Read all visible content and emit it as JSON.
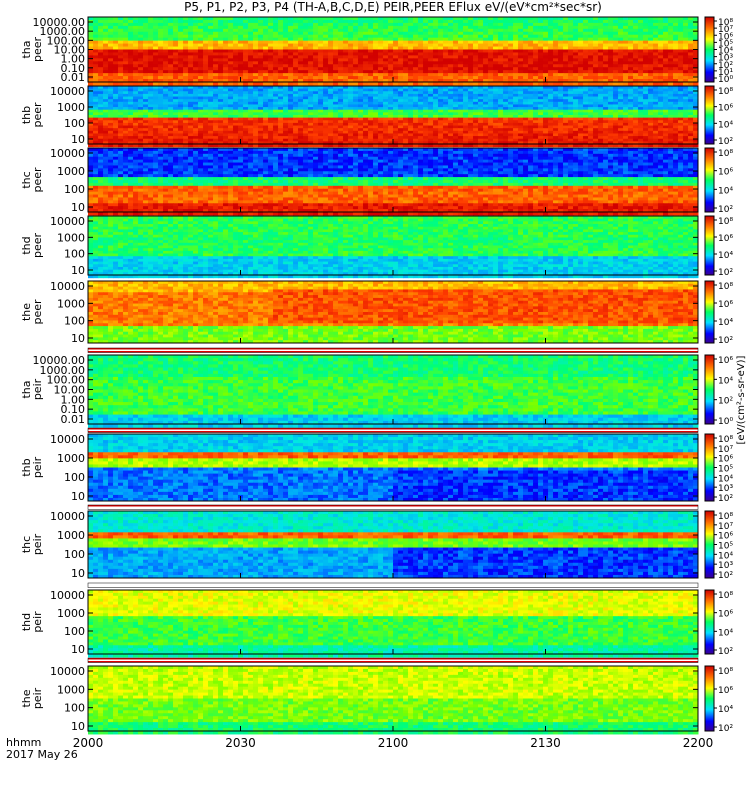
{
  "title": "P5, P1, P2, P3, P4 (TH-A,B,C,D,E) PEIR,PEER EFlux eV/(eV*cm²*sec*sr)",
  "time_axis": {
    "label_line1": "hhmm",
    "label_line2": "2017 May 26",
    "range": [
      "2000",
      "2200"
    ],
    "ticks": [
      "2000",
      "2030",
      "2100",
      "2130",
      "2200"
    ]
  },
  "colorbar_unit_label": "[eV/(cm²-s-sr-eV)]",
  "chart_data": [
    {
      "type": "heatmap",
      "probe": "tha",
      "species": "peer",
      "ylabel": [
        "tha",
        "peer"
      ],
      "yticks": [
        "10000.00",
        "1000.00",
        "100.00",
        "10.00",
        "1.00",
        "0.10",
        "0.01"
      ],
      "log_y": true,
      "colorbar_ticks": [
        "10⁸",
        "10⁷",
        "10⁶",
        "10⁵",
        "10⁴",
        "10³",
        "10²",
        "10¹",
        "10⁰"
      ]
    },
    {
      "type": "heatmap",
      "probe": "thb",
      "species": "peer",
      "ylabel": [
        "thb",
        "peer"
      ],
      "yticks": [
        "10000",
        "1000",
        "100",
        "10"
      ],
      "log_y": true,
      "colorbar_ticks": [
        "10⁸",
        "10⁶",
        "10⁴",
        "10²"
      ]
    },
    {
      "type": "heatmap",
      "probe": "thc",
      "species": "peer",
      "ylabel": [
        "thc",
        "peer"
      ],
      "yticks": [
        "10000",
        "1000",
        "100",
        "10"
      ],
      "log_y": true,
      "colorbar_ticks": [
        "10⁸",
        "10⁶",
        "10⁴",
        "10²"
      ]
    },
    {
      "type": "heatmap",
      "probe": "thd",
      "species": "peer",
      "ylabel": [
        "thd",
        "peer"
      ],
      "yticks": [
        "10000",
        "1000",
        "100",
        "10"
      ],
      "log_y": true,
      "colorbar_ticks": [
        "10⁸",
        "10⁶",
        "10⁴",
        "10²"
      ]
    },
    {
      "type": "heatmap",
      "probe": "the",
      "species": "peer",
      "ylabel": [
        "the",
        "peer"
      ],
      "yticks": [
        "10000",
        "1000",
        "100",
        "10"
      ],
      "log_y": true,
      "colorbar_ticks": [
        "10⁸",
        "10⁶",
        "10⁴",
        "10²"
      ]
    },
    {
      "type": "heatmap",
      "probe": "tha",
      "species": "peir",
      "ylabel": [
        "tha",
        "peir"
      ],
      "yticks": [
        "10000.00",
        "1000.00",
        "100.00",
        "10.00",
        "1.00",
        "0.10",
        "0.01"
      ],
      "log_y": true,
      "colorbar_ticks": [
        "10⁶",
        "10⁴",
        "10²",
        "10⁰"
      ]
    },
    {
      "type": "heatmap",
      "probe": "thb",
      "species": "peir",
      "ylabel": [
        "thb",
        "peir"
      ],
      "yticks": [
        "10000",
        "1000",
        "100",
        "10"
      ],
      "log_y": true,
      "colorbar_ticks": [
        "10⁸",
        "10⁷",
        "10⁶",
        "10⁵",
        "10⁴",
        "10³",
        "10²"
      ]
    },
    {
      "type": "heatmap",
      "probe": "thc",
      "species": "peir",
      "ylabel": [
        "thc",
        "peir"
      ],
      "yticks": [
        "10000",
        "1000",
        "100",
        "10"
      ],
      "log_y": true,
      "colorbar_ticks": [
        "10⁸",
        "10⁷",
        "10⁶",
        "10⁵",
        "10⁴",
        "10³",
        "10²"
      ]
    },
    {
      "type": "heatmap",
      "probe": "thd",
      "species": "peir",
      "ylabel": [
        "thd",
        "peir"
      ],
      "yticks": [
        "10000",
        "1000",
        "100",
        "10"
      ],
      "log_y": true,
      "colorbar_ticks": [
        "10⁸",
        "10⁶",
        "10⁴",
        "10²"
      ]
    },
    {
      "type": "heatmap",
      "probe": "the",
      "species": "peir",
      "ylabel": [
        "the",
        "peir"
      ],
      "yticks": [
        "10000",
        "1000",
        "100",
        "10"
      ],
      "log_y": true,
      "colorbar_ticks": [
        "10⁸",
        "10⁶",
        "10⁴",
        "10²"
      ]
    }
  ]
}
